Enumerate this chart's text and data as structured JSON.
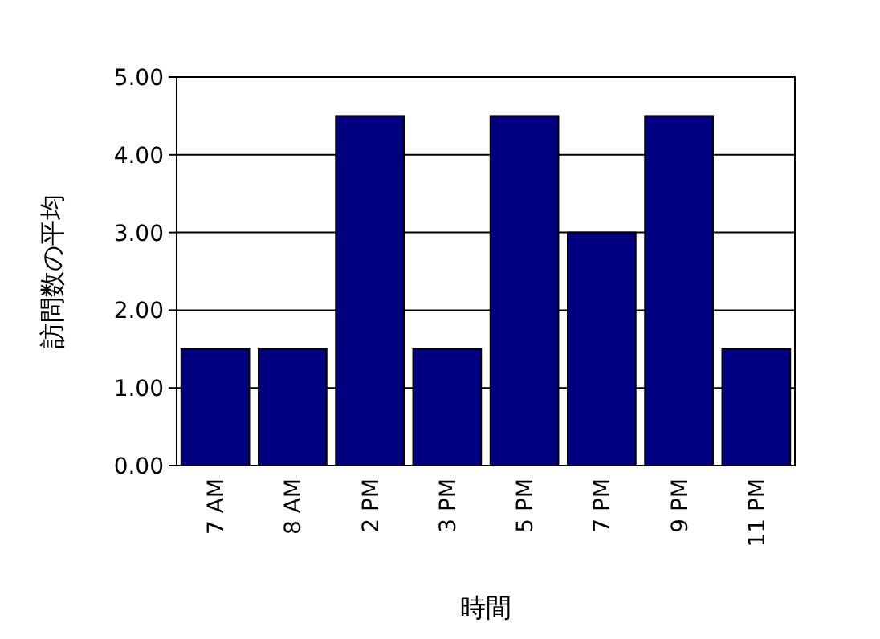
{
  "chart_data": {
    "type": "bar",
    "xlabel": "時間",
    "ylabel": "訪問数の平均",
    "categories": [
      "7 AM",
      "8 AM",
      "2 PM",
      "3 PM",
      "5 PM",
      "7 PM",
      "9 PM",
      "11 PM"
    ],
    "values": [
      1.5,
      1.5,
      4.5,
      1.5,
      4.5,
      3.0,
      4.5,
      1.5
    ],
    "color": "#000080",
    "ylim": [
      0,
      5
    ],
    "yticks": [
      {
        "value": 0,
        "label": "0.00"
      },
      {
        "value": 1,
        "label": "1.00"
      },
      {
        "value": 2,
        "label": "2.00"
      },
      {
        "value": 3,
        "label": "3.00"
      },
      {
        "value": 4,
        "label": "4.00"
      },
      {
        "value": 5,
        "label": "5.00"
      }
    ],
    "grid": true
  }
}
